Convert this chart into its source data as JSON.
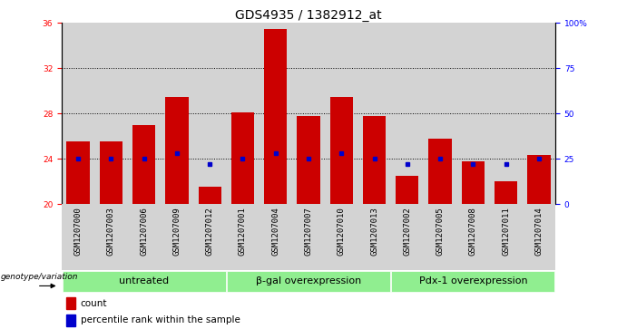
{
  "title": "GDS4935 / 1382912_at",
  "samples": [
    "GSM1207000",
    "GSM1207003",
    "GSM1207006",
    "GSM1207009",
    "GSM1207012",
    "GSM1207001",
    "GSM1207004",
    "GSM1207007",
    "GSM1207010",
    "GSM1207013",
    "GSM1207002",
    "GSM1207005",
    "GSM1207008",
    "GSM1207011",
    "GSM1207014"
  ],
  "counts": [
    25.5,
    25.5,
    27.0,
    29.5,
    21.5,
    28.1,
    35.5,
    27.8,
    29.5,
    27.8,
    22.5,
    25.8,
    23.8,
    22.0,
    24.3
  ],
  "percentiles": [
    24.0,
    24.0,
    24.0,
    24.5,
    23.5,
    24.0,
    24.5,
    24.0,
    24.5,
    24.0,
    23.5,
    24.0,
    23.5,
    23.5,
    24.0
  ],
  "groups": [
    {
      "label": "untreated",
      "start": 0,
      "end": 4
    },
    {
      "label": "β-gal overexpression",
      "start": 5,
      "end": 9
    },
    {
      "label": "Pdx-1 overexpression",
      "start": 10,
      "end": 14
    }
  ],
  "bar_color": "#cc0000",
  "dot_color": "#0000cc",
  "group_bg_color": "#90ee90",
  "bar_bg_color": "#d3d3d3",
  "ymin": 20,
  "ymax": 36,
  "yticks_left": [
    20,
    24,
    28,
    32,
    36
  ],
  "yticks_right": [
    0,
    25,
    50,
    75,
    100
  ],
  "grid_values": [
    24,
    28,
    32
  ],
  "title_fontsize": 10,
  "tick_fontsize": 6.5,
  "group_label_fontsize": 8,
  "legend_fontsize": 7.5
}
